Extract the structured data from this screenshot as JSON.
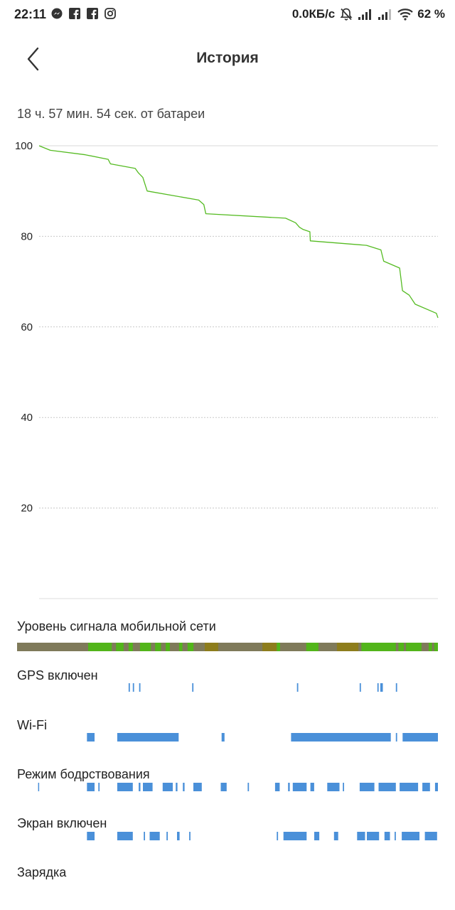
{
  "status_bar": {
    "time": "22:11",
    "left_icons": [
      "messenger-icon",
      "facebook-icon",
      "facebook-icon",
      "instagram-icon"
    ],
    "network_speed": "0.0КБ/с",
    "right_icons": [
      "bell-off-icon",
      "signal-icon",
      "signal-icon",
      "wifi-icon"
    ],
    "battery": "62 %"
  },
  "header": {
    "title": "История",
    "back_icon": "chevron-left-icon"
  },
  "summary": {
    "duration": "18 ч. 57 мин. 54 сек. от батареи"
  },
  "chart_data": {
    "type": "line",
    "title": "",
    "xlabel": "",
    "ylabel": "",
    "ylim": [
      0,
      100
    ],
    "yticks": [
      100,
      80,
      60,
      40,
      20
    ],
    "grid": true,
    "series": [
      {
        "color": "#55bb22",
        "x": [
          0,
          2.8,
          11.6,
          17.3,
          17.9,
          24.1,
          24.9,
          26.0,
          27.1,
          40.0,
          41.3,
          41.8,
          61.8,
          64.3,
          65.3,
          66.2,
          67.9,
          68.0,
          82.1,
          85.7,
          86.4,
          90.4,
          91.1,
          92.8,
          94.3,
          99.6,
          100
        ],
        "values": [
          100,
          99,
          98,
          97,
          96,
          95,
          94,
          93,
          90,
          88,
          87,
          85,
          84,
          83,
          82,
          81.5,
          81,
          79,
          78,
          77,
          74.5,
          73,
          68,
          67,
          65,
          63,
          62
        ]
      }
    ]
  },
  "tracks": [
    {
      "label": "Уровень сигнала мобильной сети",
      "kind": "signal",
      "base_color": "#7f7a5a",
      "segments": [
        {
          "start": 16.9,
          "end": 22.5,
          "color": "#52b51a"
        },
        {
          "start": 23.5,
          "end": 25.3,
          "color": "#52b51a"
        },
        {
          "start": 26.5,
          "end": 27.5,
          "color": "#52b51a"
        },
        {
          "start": 29.2,
          "end": 31.8,
          "color": "#52b51a"
        },
        {
          "start": 32.8,
          "end": 34.2,
          "color": "#52b51a"
        },
        {
          "start": 35.3,
          "end": 36.3,
          "color": "#52b51a"
        },
        {
          "start": 38.5,
          "end": 39.3,
          "color": "#52b51a"
        },
        {
          "start": 40.5,
          "end": 41.9,
          "color": "#52b51a"
        },
        {
          "start": 44.6,
          "end": 47.8,
          "color": "#8d7d1c"
        },
        {
          "start": 58.3,
          "end": 61.7,
          "color": "#8d7d1c"
        },
        {
          "start": 61.7,
          "end": 62.5,
          "color": "#52b51a"
        },
        {
          "start": 68.7,
          "end": 71.6,
          "color": "#52b51a"
        },
        {
          "start": 76.0,
          "end": 81.1,
          "color": "#8d7d1c"
        },
        {
          "start": 81.8,
          "end": 90.0,
          "color": "#52b51a"
        },
        {
          "start": 90.6,
          "end": 91.9,
          "color": "#52b51a"
        },
        {
          "start": 92.4,
          "end": 96.1,
          "color": "#52b51a"
        },
        {
          "start": 97.8,
          "end": 98.6,
          "color": "#52b51a"
        },
        {
          "start": 99.1,
          "end": 100,
          "color": "#52b51a"
        }
      ]
    },
    {
      "label": "GPS включен",
      "kind": "events",
      "color": "#4a90d9",
      "segments": [
        {
          "start": 26.5,
          "end": 26.8
        },
        {
          "start": 27.5,
          "end": 27.8
        },
        {
          "start": 29.0,
          "end": 29.3
        },
        {
          "start": 41.6,
          "end": 41.9
        },
        {
          "start": 66.5,
          "end": 66.8
        },
        {
          "start": 81.4,
          "end": 81.7
        },
        {
          "start": 85.6,
          "end": 85.9
        },
        {
          "start": 86.3,
          "end": 86.9
        },
        {
          "start": 90.0,
          "end": 90.3
        }
      ]
    },
    {
      "label": "Wi-Fi",
      "kind": "events",
      "color": "#4a90d9",
      "segments": [
        {
          "start": 16.6,
          "end": 18.4
        },
        {
          "start": 23.8,
          "end": 38.4
        },
        {
          "start": 48.6,
          "end": 49.3
        },
        {
          "start": 65.1,
          "end": 88.8
        },
        {
          "start": 90.0,
          "end": 90.3
        },
        {
          "start": 91.6,
          "end": 100
        }
      ]
    },
    {
      "label": "Режим бодрствования",
      "kind": "events",
      "color": "#4a90d9",
      "segments": [
        {
          "start": 5.0,
          "end": 5.2
        },
        {
          "start": 16.6,
          "end": 18.4
        },
        {
          "start": 19.3,
          "end": 19.6
        },
        {
          "start": 23.8,
          "end": 27.5
        },
        {
          "start": 28.9,
          "end": 29.3
        },
        {
          "start": 29.9,
          "end": 32.2
        },
        {
          "start": 34.6,
          "end": 37.0
        },
        {
          "start": 37.7,
          "end": 38.1
        },
        {
          "start": 39.4,
          "end": 39.8
        },
        {
          "start": 41.9,
          "end": 43.9
        },
        {
          "start": 48.4,
          "end": 49.8
        },
        {
          "start": 54.8,
          "end": 55.1
        },
        {
          "start": 61.3,
          "end": 62.4
        },
        {
          "start": 64.4,
          "end": 64.8
        },
        {
          "start": 65.5,
          "end": 68.8
        },
        {
          "start": 69.7,
          "end": 70.6
        },
        {
          "start": 73.7,
          "end": 76.6
        },
        {
          "start": 77.4,
          "end": 77.7
        },
        {
          "start": 81.4,
          "end": 84.9
        },
        {
          "start": 85.9,
          "end": 90.0
        },
        {
          "start": 90.9,
          "end": 95.3
        },
        {
          "start": 96.3,
          "end": 98.1
        },
        {
          "start": 99.3,
          "end": 100
        }
      ]
    },
    {
      "label": "Экран включен",
      "kind": "events",
      "color": "#4a90d9",
      "segments": [
        {
          "start": 16.6,
          "end": 18.4
        },
        {
          "start": 23.8,
          "end": 27.5
        },
        {
          "start": 30.1,
          "end": 30.4
        },
        {
          "start": 31.5,
          "end": 33.9
        },
        {
          "start": 35.5,
          "end": 35.8
        },
        {
          "start": 38.0,
          "end": 38.6
        },
        {
          "start": 40.9,
          "end": 41.2
        },
        {
          "start": 61.7,
          "end": 62.0
        },
        {
          "start": 63.3,
          "end": 68.8
        },
        {
          "start": 70.6,
          "end": 71.8
        },
        {
          "start": 75.3,
          "end": 76.3
        },
        {
          "start": 80.8,
          "end": 82.7
        },
        {
          "start": 83.1,
          "end": 86.0
        },
        {
          "start": 87.3,
          "end": 88.6
        },
        {
          "start": 89.7,
          "end": 90.0
        },
        {
          "start": 91.4,
          "end": 95.6
        },
        {
          "start": 96.9,
          "end": 99.8
        }
      ]
    },
    {
      "label": "Зарядка",
      "kind": "events",
      "color": "#4a90d9",
      "segments": []
    }
  ]
}
